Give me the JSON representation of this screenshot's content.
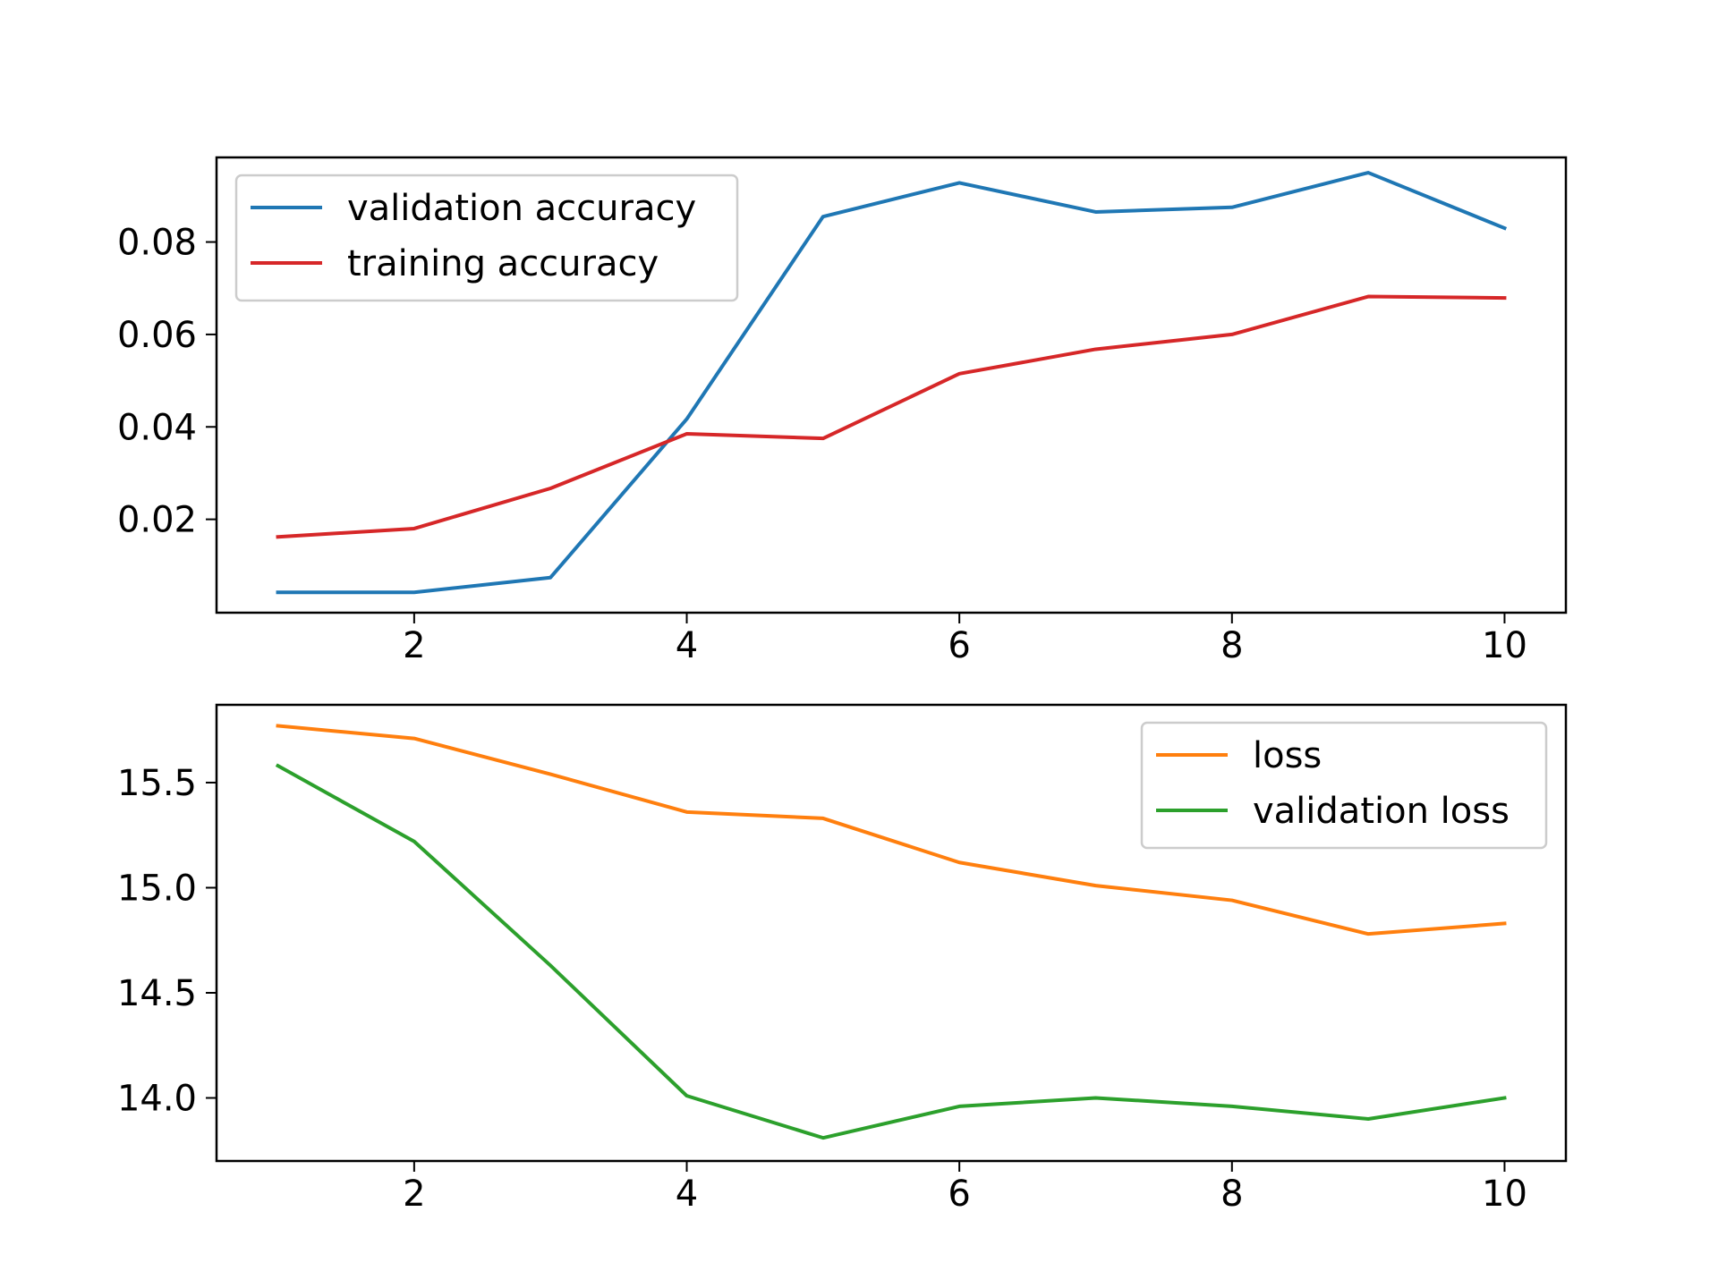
{
  "chart_data": [
    {
      "type": "line",
      "title": "",
      "xlabel": "",
      "ylabel": "",
      "x": [
        1,
        2,
        3,
        4,
        5,
        6,
        7,
        8,
        9,
        10
      ],
      "xlim": [
        0.55,
        10.45
      ],
      "ylim": [
        -0.0002,
        0.0983
      ],
      "xticks": [
        2,
        4,
        6,
        8,
        10
      ],
      "xtick_labels": [
        "2",
        "4",
        "6",
        "8",
        "10"
      ],
      "yticks": [
        0.02,
        0.04,
        0.06,
        0.08
      ],
      "ytick_labels": [
        "0.02",
        "0.04",
        "0.06",
        "0.08"
      ],
      "grid": false,
      "legend_position": "upper left",
      "series": [
        {
          "name": "validation accuracy",
          "color": "#1f77b4",
          "values": [
            0.0042,
            0.0042,
            0.0074,
            0.0417,
            0.0855,
            0.0928,
            0.0865,
            0.0875,
            0.095,
            0.083
          ]
        },
        {
          "name": "training accuracy",
          "color": "#d62728",
          "values": [
            0.0162,
            0.018,
            0.0267,
            0.0385,
            0.0375,
            0.0515,
            0.0568,
            0.06,
            0.0682,
            0.0679
          ]
        }
      ]
    },
    {
      "type": "line",
      "title": "",
      "xlabel": "",
      "ylabel": "",
      "x": [
        1,
        2,
        3,
        4,
        5,
        6,
        7,
        8,
        9,
        10
      ],
      "xlim": [
        0.55,
        10.45
      ],
      "ylim": [
        13.7,
        15.87
      ],
      "xticks": [
        2,
        4,
        6,
        8,
        10
      ],
      "xtick_labels": [
        "2",
        "4",
        "6",
        "8",
        "10"
      ],
      "yticks": [
        14.0,
        14.5,
        15.0,
        15.5
      ],
      "ytick_labels": [
        "14.0",
        "14.5",
        "15.0",
        "15.5"
      ],
      "grid": false,
      "legend_position": "upper right",
      "series": [
        {
          "name": "loss",
          "color": "#ff7f0e",
          "values": [
            15.77,
            15.71,
            15.54,
            15.36,
            15.33,
            15.12,
            15.01,
            14.94,
            14.78,
            14.83
          ]
        },
        {
          "name": "validation loss",
          "color": "#2ca02c",
          "values": [
            15.58,
            15.22,
            14.63,
            14.01,
            13.81,
            13.96,
            14.0,
            13.96,
            13.9,
            14.0
          ]
        }
      ]
    }
  ]
}
